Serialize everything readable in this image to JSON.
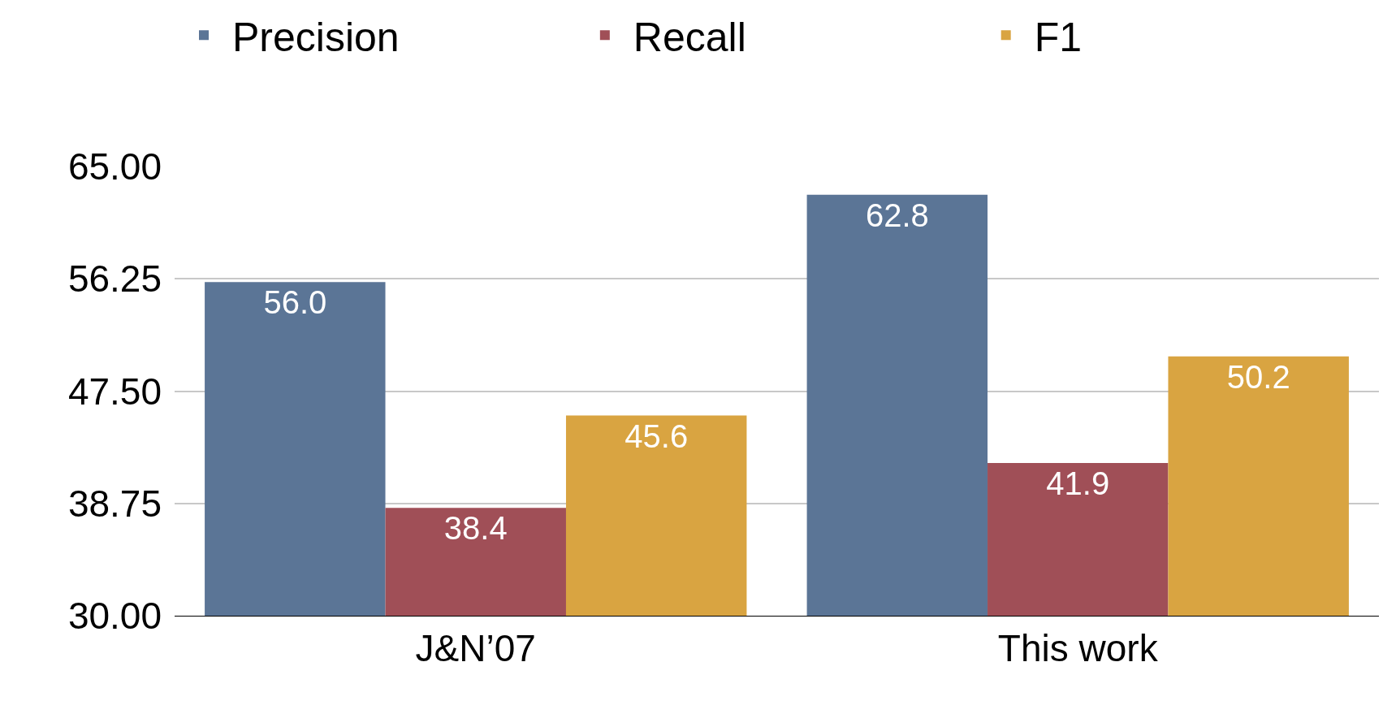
{
  "chart_data": {
    "type": "bar",
    "categories": [
      "J&N’07",
      "This work"
    ],
    "series": [
      {
        "name": "Precision",
        "color": "#5b7596",
        "values": [
          56.0,
          62.8
        ],
        "value_labels": [
          "56.0",
          "62.8"
        ]
      },
      {
        "name": "Recall",
        "color": "#a04f57",
        "values": [
          38.4,
          41.9
        ],
        "value_labels": [
          "38.4",
          "41.9"
        ]
      },
      {
        "name": "F1",
        "color": "#d9a441",
        "values": [
          45.6,
          50.2
        ],
        "value_labels": [
          "45.6",
          "50.2"
        ]
      }
    ],
    "ylim": [
      30,
      65
    ],
    "yticks": [
      {
        "value": 30,
        "label": "30.00"
      },
      {
        "value": 38.75,
        "label": "38.75"
      },
      {
        "value": 47.5,
        "label": "47.50"
      },
      {
        "value": 56.25,
        "label": "56.25"
      },
      {
        "value": 65,
        "label": "65.00"
      }
    ],
    "grid": "y",
    "legend": "top"
  }
}
